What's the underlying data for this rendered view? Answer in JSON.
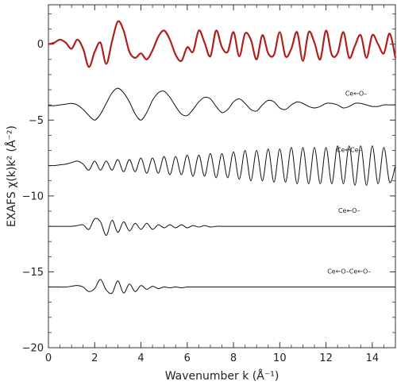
{
  "chart_data": {
    "type": "line",
    "xlabel": "Wavenumber k (Å⁻¹)",
    "ylabel": "EXAFS χ(k)k² (Å⁻²)",
    "xlim": [
      0,
      15
    ],
    "ylim": [
      -20,
      2.6
    ],
    "x_ticks": [
      0,
      2,
      4,
      6,
      8,
      10,
      12,
      14
    ],
    "y_ticks": [
      0,
      -5,
      -10,
      -15,
      -20
    ],
    "grid": false,
    "series": [
      {
        "color": "#b01e1e",
        "line_width": 2.2,
        "x": [
          0,
          0.25,
          0.5,
          0.75,
          1,
          1.25,
          1.5,
          1.75,
          2,
          2.25,
          2.5,
          2.75,
          3,
          3.25,
          3.5,
          3.75,
          4,
          4.25,
          4.5,
          4.75,
          5,
          5.25,
          5.5,
          5.75,
          6,
          6.25,
          6.5,
          6.75,
          7,
          7.25,
          7.5,
          7.75,
          8,
          8.25,
          8.5,
          8.75,
          9,
          9.25,
          9.5,
          9.75,
          10,
          10.25,
          10.5,
          10.75,
          11,
          11.25,
          11.5,
          11.75,
          12,
          12.25,
          12.5,
          12.75,
          13,
          13.25,
          13.5,
          13.75,
          14,
          14.25,
          14.5,
          14.75,
          15
        ],
        "y": [
          0,
          0.1,
          0.3,
          0.1,
          -0.3,
          0.3,
          -0.3,
          -1.5,
          -0.5,
          0.1,
          -1.3,
          0.2,
          1.5,
          0.9,
          -0.5,
          -0.9,
          -0.6,
          -1.0,
          -0.4,
          0.5,
          0.9,
          0.3,
          -0.7,
          -1.1,
          -0.2,
          -0.5,
          0.9,
          0.1,
          -0.8,
          0.9,
          -0.2,
          -0.5,
          0.8,
          -0.8,
          0.7,
          0.3,
          -1.0,
          0.6,
          -0.6,
          -0.7,
          0.8,
          -0.8,
          -0.3,
          0.8,
          -1.1,
          0.8,
          0.1,
          -1.0,
          0.9,
          -0.7,
          -0.6,
          0.8,
          -0.9,
          -0.1,
          0.6,
          -0.9,
          0.6,
          0.0,
          -0.6,
          0.7,
          -0.9
        ]
      },
      {
        "color": "#111111",
        "line_width": 1,
        "x": [
          0,
          0.25,
          0.5,
          0.75,
          1,
          1.25,
          1.5,
          1.75,
          2,
          2.25,
          2.5,
          2.75,
          3,
          3.25,
          3.5,
          3.75,
          4,
          4.25,
          4.5,
          4.75,
          5,
          5.25,
          5.5,
          5.75,
          6,
          6.25,
          6.5,
          6.75,
          7,
          7.25,
          7.5,
          7.75,
          8,
          8.25,
          8.5,
          8.75,
          9,
          9.25,
          9.5,
          9.75,
          10,
          10.25,
          10.5,
          10.75,
          11,
          11.25,
          11.5,
          11.75,
          12,
          12.25,
          12.5,
          12.75,
          13,
          13.25,
          13.5,
          13.75,
          14,
          14.25,
          14.5,
          14.75,
          15
        ],
        "y": [
          -4.05,
          -4.05,
          -4.0,
          -3.95,
          -3.9,
          -4.0,
          -4.3,
          -4.7,
          -5.0,
          -4.6,
          -3.9,
          -3.2,
          -2.9,
          -3.2,
          -3.8,
          -4.6,
          -5.0,
          -4.5,
          -3.7,
          -3.2,
          -3.1,
          -3.5,
          -4.1,
          -4.6,
          -4.7,
          -4.3,
          -3.8,
          -3.5,
          -3.6,
          -4.1,
          -4.5,
          -4.3,
          -3.8,
          -3.6,
          -3.9,
          -4.3,
          -4.4,
          -4.0,
          -3.7,
          -3.8,
          -4.2,
          -4.3,
          -4.0,
          -3.8,
          -3.9,
          -4.1,
          -4.2,
          -4.1,
          -3.9,
          -3.9,
          -4.0,
          -4.2,
          -4.1,
          -3.9,
          -3.9,
          -4.0,
          -4.1,
          -4.1,
          -4.0,
          -4.0,
          -4.0
        ]
      },
      {
        "color": "#111111",
        "line_width": 1,
        "x": [
          0,
          0.25,
          0.5,
          0.75,
          1,
          1.25,
          1.5,
          1.75,
          2,
          2.25,
          2.5,
          2.75,
          3,
          3.25,
          3.5,
          3.75,
          4,
          4.25,
          4.5,
          4.75,
          5,
          5.25,
          5.5,
          5.75,
          6,
          6.25,
          6.5,
          6.75,
          7,
          7.25,
          7.5,
          7.75,
          8,
          8.25,
          8.5,
          8.75,
          9,
          9.25,
          9.5,
          9.75,
          10,
          10.25,
          10.5,
          10.75,
          11,
          11.25,
          11.5,
          11.75,
          12,
          12.25,
          12.5,
          12.75,
          13,
          13.25,
          13.5,
          13.75,
          14,
          14.25,
          14.5,
          14.75,
          15
        ],
        "y": [
          -8.0,
          -8.0,
          -7.95,
          -7.9,
          -7.8,
          -7.7,
          -7.9,
          -8.3,
          -7.7,
          -8.3,
          -7.7,
          -8.3,
          -7.6,
          -8.4,
          -7.6,
          -8.4,
          -7.5,
          -8.5,
          -7.5,
          -8.5,
          -7.4,
          -8.6,
          -7.4,
          -8.6,
          -7.3,
          -8.7,
          -7.3,
          -8.7,
          -7.2,
          -8.8,
          -7.2,
          -8.8,
          -7.1,
          -8.9,
          -7.0,
          -9.0,
          -7.0,
          -9.0,
          -6.9,
          -9.1,
          -6.9,
          -9.1,
          -6.8,
          -9.2,
          -6.8,
          -9.2,
          -6.8,
          -9.2,
          -6.8,
          -9.2,
          -6.7,
          -9.2,
          -6.7,
          -9.3,
          -6.7,
          -9.3,
          -6.7,
          -9.2,
          -6.8,
          -9.1,
          -8.0
        ]
      },
      {
        "color": "#111111",
        "line_width": 1,
        "x": [
          0,
          0.25,
          0.5,
          0.75,
          1,
          1.25,
          1.5,
          1.75,
          2,
          2.25,
          2.5,
          2.75,
          3,
          3.25,
          3.5,
          3.75,
          4,
          4.25,
          4.5,
          4.75,
          5,
          5.25,
          5.5,
          5.75,
          6,
          6.25,
          6.5,
          6.75,
          7,
          7.25,
          7.5,
          7.75,
          8,
          8.25,
          8.5,
          8.75,
          9,
          9.25,
          9.5,
          9.75,
          10,
          10.25,
          10.5,
          10.75,
          11,
          11.25,
          11.5,
          11.75,
          12,
          12.25,
          12.5,
          12.75,
          13,
          13.25,
          13.5,
          13.75,
          14,
          14.25,
          14.5,
          14.75,
          15
        ],
        "y": [
          -12.0,
          -12.0,
          -12.0,
          -12.0,
          -12.0,
          -11.95,
          -11.9,
          -12.2,
          -11.5,
          -11.7,
          -12.6,
          -11.6,
          -12.4,
          -11.7,
          -12.3,
          -11.8,
          -12.2,
          -11.8,
          -12.2,
          -11.9,
          -12.1,
          -11.9,
          -12.1,
          -11.9,
          -12.1,
          -11.95,
          -12.05,
          -11.95,
          -12.05,
          -12.0,
          -12.0,
          -12.0,
          -12.0,
          -12.0,
          -12.0,
          -12.0,
          -12.0,
          -12.0,
          -12.0,
          -12.0,
          -12.0,
          -12.0,
          -12.0,
          -12.0,
          -12.0,
          -12.0,
          -12.0,
          -12.0,
          -12.0,
          -12.0,
          -12.0,
          -12.0,
          -12.0,
          -12.0,
          -12.0,
          -12.0,
          -12.0,
          -12.0,
          -12.0,
          -12.0,
          -12.0
        ]
      },
      {
        "color": "#111111",
        "line_width": 1,
        "x": [
          0,
          0.25,
          0.5,
          0.75,
          1,
          1.25,
          1.5,
          1.75,
          2,
          2.25,
          2.5,
          2.75,
          3,
          3.25,
          3.5,
          3.75,
          4,
          4.25,
          4.5,
          4.75,
          5,
          5.25,
          5.5,
          5.75,
          6,
          6.25,
          6.5,
          6.75,
          7,
          7.25,
          7.5,
          7.75,
          8,
          8.25,
          8.5,
          8.75,
          9,
          9.25,
          9.5,
          9.75,
          10,
          10.25,
          10.5,
          10.75,
          11,
          11.25,
          11.5,
          11.75,
          12,
          12.25,
          12.5,
          12.75,
          13,
          13.25,
          13.5,
          13.75,
          14,
          14.25,
          14.5,
          14.75,
          15
        ],
        "y": [
          -16.0,
          -16.0,
          -16.0,
          -16.0,
          -15.95,
          -15.9,
          -16.0,
          -16.3,
          -16.1,
          -15.5,
          -16.2,
          -16.4,
          -15.6,
          -16.4,
          -15.8,
          -16.3,
          -15.9,
          -16.15,
          -15.95,
          -16.1,
          -16.0,
          -16.05,
          -16.0,
          -16.05,
          -16.0,
          -16.0,
          -16.0,
          -16.0,
          -16.0,
          -16.0,
          -16.0,
          -16.0,
          -16.0,
          -16.0,
          -16.0,
          -16.0,
          -16.0,
          -16.0,
          -16.0,
          -16.0,
          -16.0,
          -16.0,
          -16.0,
          -16.0,
          -16.0,
          -16.0,
          -16.0,
          -16.0,
          -16.0,
          -16.0,
          -16.0,
          -16.0,
          -16.0,
          -16.0,
          -16.0,
          -16.0,
          -16.0,
          -16.0,
          -16.0,
          -16.0,
          -16.0
        ]
      }
    ],
    "annotations": [
      {
        "text": "Ce←O–",
        "x": 13.3,
        "y": -3.4
      },
      {
        "text": "Ce←Ce–",
        "x": 13.0,
        "y": -7.1
      },
      {
        "text": "Ce←O–",
        "x": 13.0,
        "y": -11.1
      },
      {
        "text": "Ce←O–Ce←O–",
        "x": 13.0,
        "y": -15.1
      }
    ]
  }
}
